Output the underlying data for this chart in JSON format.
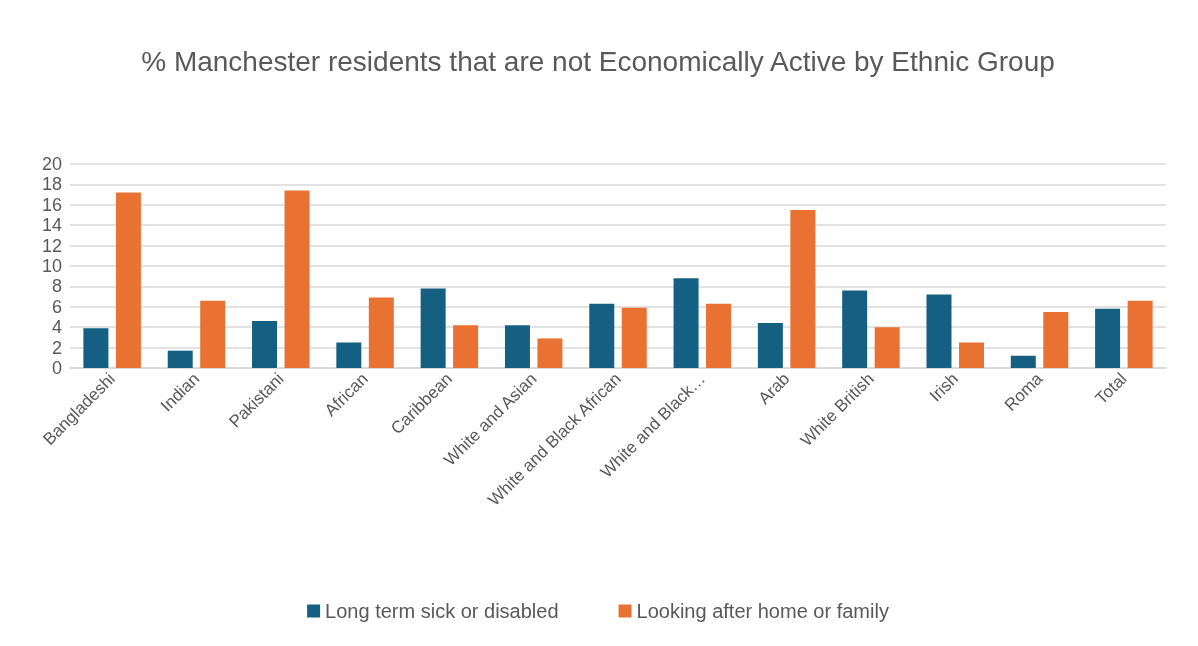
{
  "chart_data": {
    "type": "bar",
    "title": "% Manchester residents that are not Economically Active by Ethnic Group",
    "categories": [
      "Bangladeshi",
      "Indian",
      "Pakistani",
      "African",
      "Caribbean",
      "White and Asian",
      "White and Black African",
      "White and Black…",
      "Arab",
      "White British",
      "Irish",
      "Roma",
      "Total"
    ],
    "series": [
      {
        "name": "Long term sick or disabled",
        "color": "#156082",
        "values": [
          3.9,
          1.7,
          4.6,
          2.5,
          7.8,
          4.2,
          6.3,
          8.8,
          4.4,
          7.6,
          7.2,
          1.2,
          5.8
        ]
      },
      {
        "name": "Looking after home or family",
        "color": "#e97132",
        "values": [
          17.2,
          6.6,
          17.4,
          6.9,
          4.2,
          2.9,
          5.9,
          6.3,
          15.5,
          4.0,
          2.5,
          5.5,
          6.6
        ]
      }
    ],
    "ylim": [
      0,
      20
    ],
    "yticks": [
      0,
      2,
      4,
      6,
      8,
      10,
      12,
      14,
      16,
      18,
      20
    ],
    "grid": "y",
    "legend": "bottom"
  }
}
